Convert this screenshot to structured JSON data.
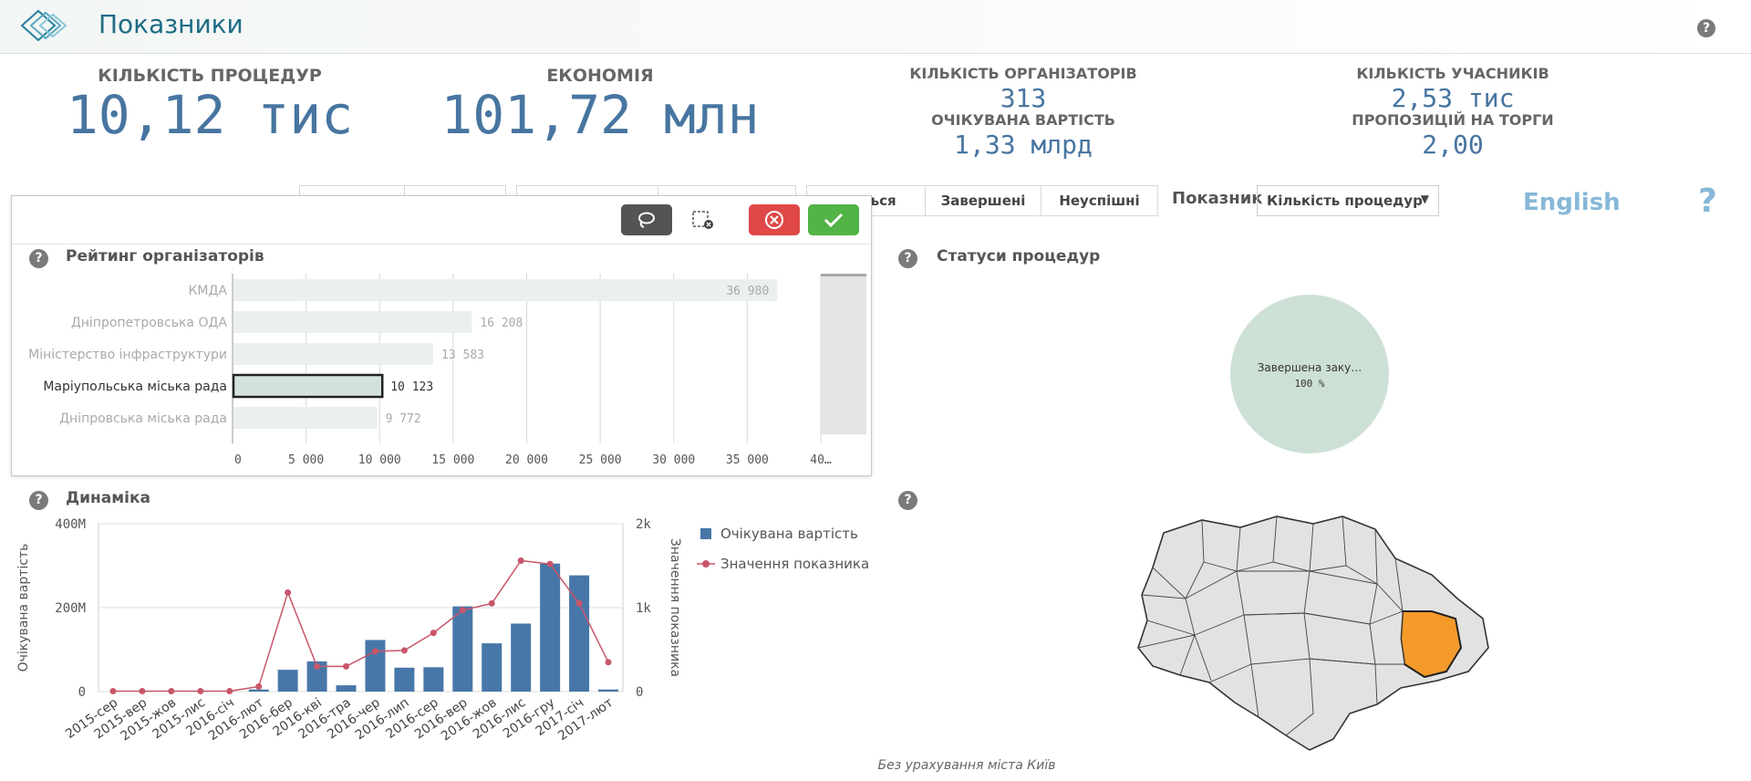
{
  "header": {
    "title": "Показники",
    "help_label": "?"
  },
  "kpis": {
    "procedures": {
      "label": "КІЛЬКІСТЬ ПРОЦЕДУР",
      "value": "10,12 тис"
    },
    "economy": {
      "label": "ЕКОНОМІЯ",
      "value": "101,72 млн"
    },
    "organizers": {
      "label": "КІЛЬКІСТЬ ОРГАНІЗАТОРІВ",
      "value": "313"
    },
    "expected_cost": {
      "label": "ОЧІКУВАНА ВАРТІСТЬ",
      "value": "1,33 млрд"
    },
    "participants": {
      "label": "КІЛЬКІСТЬ УЧАСНИКІВ",
      "value": "2,53 тис"
    },
    "proposals": {
      "label": "ПРОПОЗИЦІЙ НА ТОРГИ",
      "value": "2,00"
    }
  },
  "filters": {
    "status_tabs": [
      "…ються",
      "Завершені",
      "Неуспішні"
    ],
    "indicator_label": "Показник",
    "indicator_value": "Кількість процедур",
    "english_link": "English",
    "help_label": "?"
  },
  "rating_panel": {
    "title": "Рейтинг організаторів",
    "toolbar": {
      "lasso": "lasso-icon",
      "clear": "clear-selection-icon",
      "cancel": "cancel-icon",
      "confirm": "confirm-icon"
    },
    "accent_cancel": "#e04848",
    "accent_confirm": "#52b346"
  },
  "status_panel": {
    "title": "Статуси процедур"
  },
  "dynamics_panel": {
    "title": "Динаміка"
  },
  "map_panel": {
    "footnote": "Без урахування міста Київ",
    "highlight_color": "#f39a2b"
  },
  "chart_data": [
    {
      "type": "bar",
      "orientation": "horizontal",
      "title": "Рейтинг організаторів",
      "categories": [
        "КМДА",
        "Дніпропетровська ОДА",
        "Міністерство інфраструктури",
        "Маріупольська міська рада",
        "Дніпровська міська рада"
      ],
      "values": [
        36980,
        16208,
        13583,
        10123,
        9772
      ],
      "value_labels": [
        "36 980",
        "16 208",
        "13 583",
        "10 123",
        "9 772"
      ],
      "selected": "Маріупольська міська рада",
      "xlim": [
        0,
        40000
      ],
      "x_ticks": [
        "0",
        "5 000",
        "10 000",
        "15 000",
        "20 000",
        "25 000",
        "30 000",
        "35 000",
        "40…"
      ],
      "x_tick_values": [
        0,
        5000,
        10000,
        15000,
        20000,
        25000,
        30000,
        35000,
        40000
      ],
      "grid": true
    },
    {
      "type": "pie",
      "title": "Статуси процедур",
      "slices": [
        {
          "label": "Завершена заку…",
          "value": 100,
          "display": "100 %"
        }
      ],
      "color": "#cde0d6"
    },
    {
      "type": "bar+line",
      "title": "Динаміка",
      "categories": [
        "2015-сер",
        "2015-вер",
        "2015-жов",
        "2015-лис",
        "2016-січ",
        "2016-лют",
        "2016-бер",
        "2016-кві",
        "2016-тра",
        "2016-чер",
        "2016-лип",
        "2016-сер",
        "2016-вер",
        "2016-жов",
        "2016-лис",
        "2016-гру",
        "2017-січ",
        "2017-лют"
      ],
      "series": [
        {
          "name": "Очікувана вартість",
          "type": "bar",
          "axis": "left",
          "color": "#4777a8",
          "values": [
            0,
            0,
            0,
            0,
            0,
            5,
            52,
            72,
            15,
            123,
            57,
            58,
            203,
            115,
            162,
            305,
            277,
            5
          ]
        },
        {
          "name": "Значення показника",
          "type": "line",
          "axis": "right",
          "color": "#c8566a",
          "values": [
            5,
            5,
            5,
            5,
            5,
            60,
            1180,
            300,
            300,
            480,
            490,
            700,
            970,
            1050,
            1560,
            1520,
            1050,
            350
          ]
        }
      ],
      "ylabel": "Очікувана вартість",
      "ylabel_right": "Значення показника",
      "ylim": [
        0,
        400
      ],
      "ylim_right": [
        0,
        2000
      ],
      "y_ticks": [
        "0",
        "200M",
        "400M"
      ],
      "y_ticks_right": [
        "0",
        "1k",
        "2k"
      ],
      "legend": "right"
    }
  ]
}
